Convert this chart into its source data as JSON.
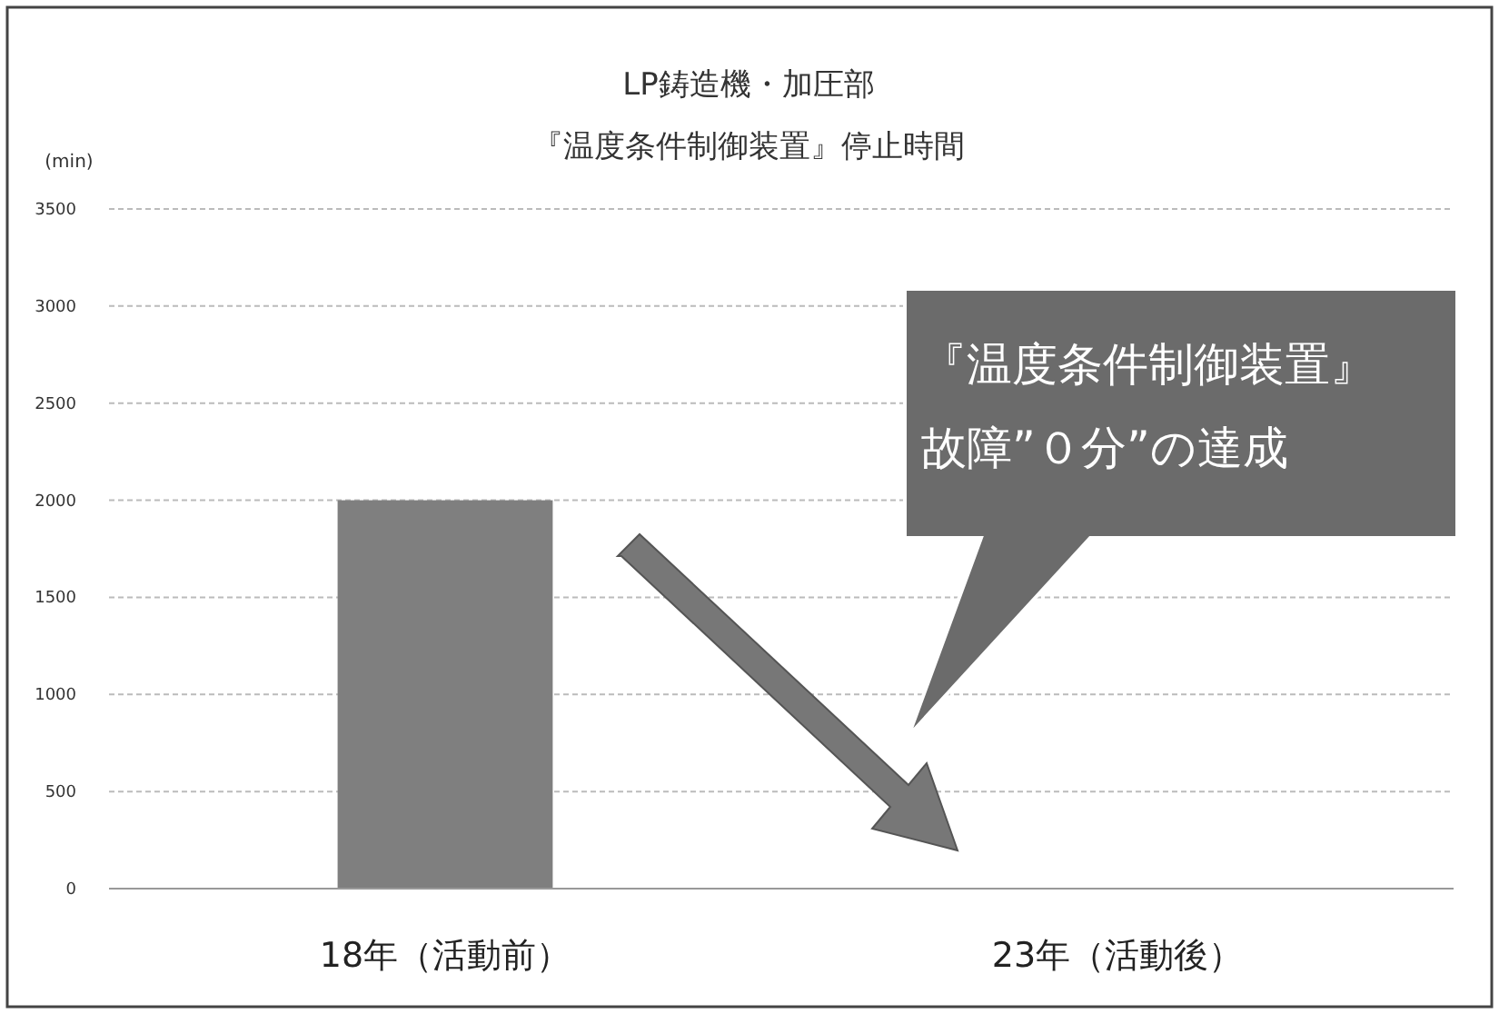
{
  "chart_data": {
    "type": "bar",
    "title": "LP鋳造機・加圧部",
    "subtitle": "『温度条件制御装置』停止時間",
    "ylabel": "(min)",
    "categories": [
      "18年（活動前）",
      "23年（活動後）"
    ],
    "values": [
      2000,
      0
    ],
    "color": "#7f7f7f",
    "ylim": [
      0,
      3500
    ],
    "yticks": [
      0,
      500,
      1000,
      1500,
      2000,
      2500,
      3000,
      3500
    ],
    "grid": "y",
    "annotations": [
      "『温度条件制御装置』",
      "故障”０分”の達成"
    ]
  }
}
